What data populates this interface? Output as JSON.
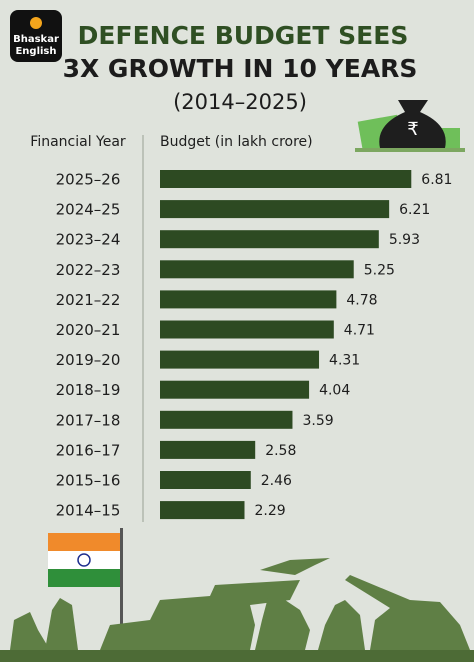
{
  "logo": [
    "Bhaskar",
    "English"
  ],
  "chart_data": {
    "type": "bar",
    "title": [
      "DEFENCE BUDGET SEES",
      "3X GROWTH IN 10 YEARS"
    ],
    "subtitle": "(2014–2025)",
    "y_label": "Financial Year",
    "x_label": "Budget (in lakh crore)",
    "categories": [
      "2025–26",
      "2024–25",
      "2023–24",
      "2022–23",
      "2021–22",
      "2020–21",
      "2019–20",
      "2018–19",
      "2017–18",
      "2016–17",
      "2015–16",
      "2014–15"
    ],
    "values": [
      6.81,
      6.21,
      5.93,
      5.25,
      4.78,
      4.71,
      4.31,
      4.04,
      3.59,
      2.58,
      2.46,
      2.29
    ],
    "color": "#2d4a22"
  }
}
